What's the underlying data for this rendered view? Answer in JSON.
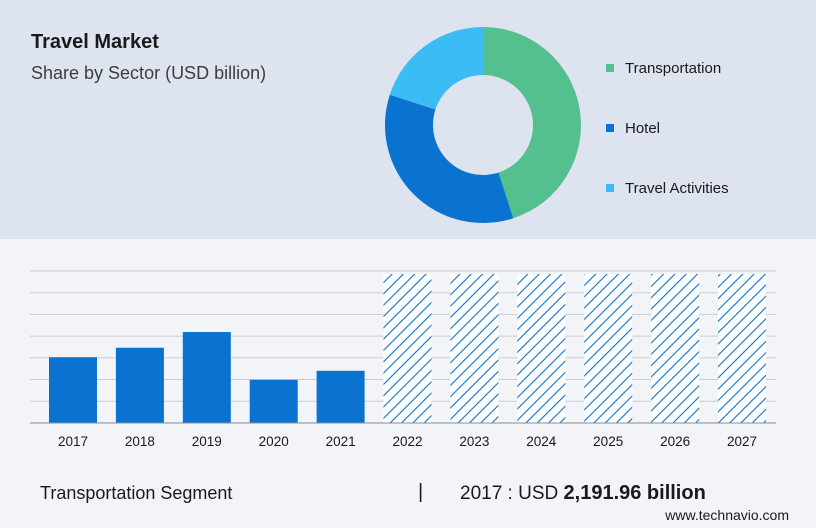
{
  "header": {
    "title": "Travel Market",
    "subtitle": "Share by Sector (USD billion)"
  },
  "footer": {
    "segment": "Transportation Segment",
    "divider": "|",
    "year_prefix": "2017 : USD",
    "amount": "2,191.96 billion",
    "url": "www.technavio.com"
  },
  "colors": {
    "transportation": "#55c08f",
    "hotel": "#0a72d1",
    "travel_activities": "#3bbcf5",
    "bar": "#0a72d1",
    "forecast_hatch": "#0a72d1",
    "top_panel": "#dde3ef",
    "grid": "#c9cdd6"
  },
  "chart_data": [
    {
      "type": "pie",
      "variant": "donut",
      "slices": [
        {
          "label": "Transportation",
          "value": 45,
          "color": "#55c08f"
        },
        {
          "label": "Hotel",
          "value": 35,
          "color": "#0a72d1"
        },
        {
          "label": "Travel Activities",
          "value": 20,
          "color": "#3bbcf5"
        }
      ],
      "legend_position": "right"
    },
    {
      "type": "bar",
      "categories": [
        "2017",
        "2018",
        "2019",
        "2020",
        "2021",
        "2022",
        "2023",
        "2024",
        "2025",
        "2026",
        "2027"
      ],
      "values": [
        2191.96,
        2508,
        3032,
        1440,
        1740,
        null,
        null,
        null,
        null,
        null,
        null
      ],
      "forecast_categories": [
        "2022",
        "2023",
        "2024",
        "2025",
        "2026",
        "2027"
      ],
      "forecast_style": "hatched",
      "ylim": [
        0,
        5500
      ],
      "grid": true,
      "y_tick_labels_shown": false
    }
  ]
}
